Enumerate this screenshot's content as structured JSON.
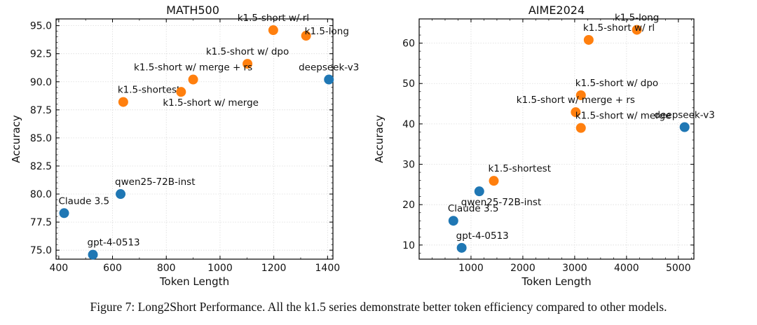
{
  "caption": "Figure 7: Long2Short Performance. All the k1.5 series demonstrate better token efficiency compared to other models.",
  "colors": {
    "k15": "#ff7f0e",
    "other": "#1f77b4"
  },
  "chart_data": [
    {
      "type": "scatter",
      "title": "MATH500",
      "xlabel": "Token Length",
      "ylabel": "Accuracy",
      "xlim": [
        390,
        1420
      ],
      "ylim": [
        74.2,
        95.6
      ],
      "xticks": [
        400,
        600,
        800,
        1000,
        1200,
        1400
      ],
      "yticks": [
        75.0,
        77.5,
        80.0,
        82.5,
        85.0,
        87.5,
        90.0,
        92.5,
        95.0
      ],
      "points": [
        {
          "label": "k1.5-short w/ rl",
          "x": 1198,
          "y": 94.6,
          "series": "k15",
          "pos": "top-center"
        },
        {
          "label": "k1.5-long",
          "x": 1320,
          "y": 94.1,
          "series": "k15",
          "pos": "right-up"
        },
        {
          "label": "k1.5-short w/ dpo",
          "x": 1102,
          "y": 91.6,
          "series": "k15",
          "pos": "top-center"
        },
        {
          "label": "k1.5-short w/ merge + rs",
          "x": 900,
          "y": 90.2,
          "series": "k15",
          "pos": "top-center"
        },
        {
          "label": "k1.5-shortest",
          "x": 640,
          "y": 88.2,
          "series": "k15",
          "pos": "top-right"
        },
        {
          "label": "k1.5-short w/ merge",
          "x": 855,
          "y": 89.1,
          "series": "k15",
          "pos": "below-right"
        },
        {
          "label": "deepseek-v3",
          "x": 1405,
          "y": 90.2,
          "series": "other",
          "pos": "top-center"
        },
        {
          "label": "qwen25-72B-inst",
          "x": 630,
          "y": 80.0,
          "series": "other",
          "pos": "top-right"
        },
        {
          "label": "Claude 3.5",
          "x": 420,
          "y": 78.3,
          "series": "other",
          "pos": "top-right"
        },
        {
          "label": "gpt-4-0513",
          "x": 527,
          "y": 74.6,
          "series": "other",
          "pos": "top-right"
        }
      ]
    },
    {
      "type": "scatter",
      "title": "AIME2024",
      "xlabel": "Token Length",
      "ylabel": "Accuracy",
      "xlim": [
        0,
        5300
      ],
      "ylim": [
        6.5,
        66
      ],
      "xticks": [
        1000,
        2000,
        3000,
        4000,
        5000
      ],
      "yticks": [
        10,
        20,
        30,
        40,
        50,
        60
      ],
      "points": [
        {
          "label": "k1.5-long",
          "x": 4200,
          "y": 63.3,
          "series": "k15",
          "pos": "top-center"
        },
        {
          "label": "k1.5-short w/ rl",
          "x": 3270,
          "y": 60.8,
          "series": "k15",
          "pos": "top-right"
        },
        {
          "label": "k1.5-short w/ dpo",
          "x": 3120,
          "y": 47.1,
          "series": "k15",
          "pos": "top-right"
        },
        {
          "label": "k1.5-short w/ merge + rs",
          "x": 3020,
          "y": 42.9,
          "series": "k15",
          "pos": "top-center"
        },
        {
          "label": "k1.5-short w/ merge",
          "x": 3120,
          "y": 39.0,
          "series": "k15",
          "pos": "top-right"
        },
        {
          "label": "k1.5-shortest",
          "x": 1440,
          "y": 25.9,
          "series": "k15",
          "pos": "top-right"
        },
        {
          "label": "deepseek-v3",
          "x": 5120,
          "y": 39.2,
          "series": "other",
          "pos": "top-center"
        },
        {
          "label": "qwen25-72B-inst",
          "x": 1160,
          "y": 23.3,
          "series": "other",
          "pos": "below-right"
        },
        {
          "label": "Claude 3.5",
          "x": 660,
          "y": 16.0,
          "series": "other",
          "pos": "top-right"
        },
        {
          "label": "gpt-4-0513",
          "x": 820,
          "y": 9.3,
          "series": "other",
          "pos": "top-right"
        }
      ]
    }
  ]
}
